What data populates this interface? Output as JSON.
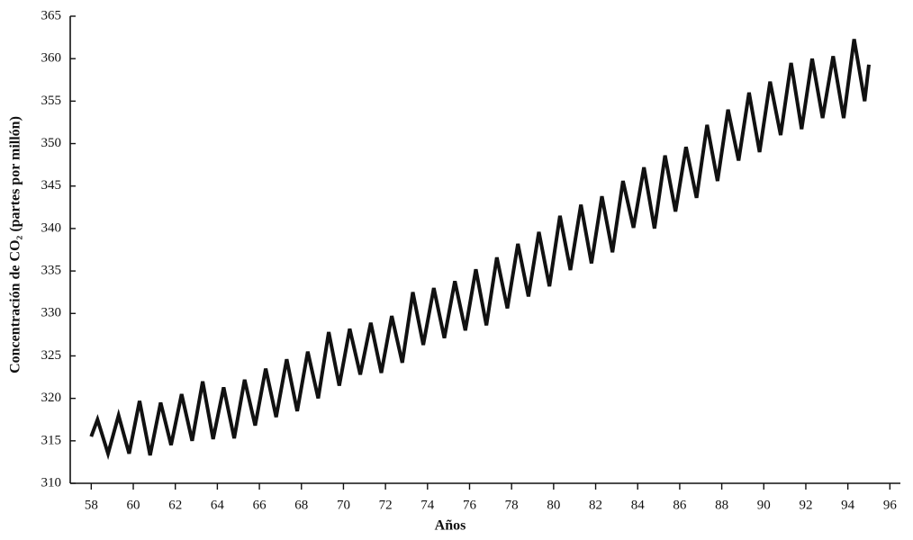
{
  "chart_data": {
    "type": "line",
    "xlabel": "Años",
    "ylabel": "Concentración de CO₂ (partes por millón)",
    "x": [
      58,
      58.3,
      58.8,
      59.3,
      59.8,
      60.3,
      60.8,
      61.3,
      61.8,
      62.3,
      62.8,
      63.3,
      63.8,
      64.3,
      64.8,
      65.3,
      65.8,
      66.3,
      66.8,
      67.3,
      67.8,
      68.3,
      68.8,
      69.3,
      69.8,
      70.3,
      70.8,
      71.3,
      71.8,
      72.3,
      72.8,
      73.3,
      73.8,
      74.3,
      74.8,
      75.3,
      75.8,
      76.3,
      76.8,
      77.3,
      77.8,
      78.3,
      78.8,
      79.3,
      79.8,
      80.3,
      80.8,
      81.3,
      81.8,
      82.3,
      82.8,
      83.3,
      83.8,
      84.3,
      84.8,
      85.3,
      85.8,
      86.3,
      86.8,
      87.3,
      87.8,
      88.3,
      88.8,
      89.3,
      89.8,
      90.3,
      90.8,
      91.3,
      91.8,
      92.3,
      92.8,
      93.3,
      93.8,
      94.3,
      94.8,
      95
    ],
    "values": [
      315.5,
      317.5,
      313.5,
      318,
      313.5,
      319.7,
      313.3,
      319.5,
      314.5,
      320.5,
      315,
      322,
      315.2,
      321.3,
      315.3,
      322.2,
      316.8,
      323.5,
      317.8,
      324.6,
      318.5,
      325.5,
      320,
      327.8,
      321.5,
      328.2,
      322.8,
      328.9,
      323,
      329.7,
      324.2,
      332.5,
      326.3,
      333,
      327.1,
      333.8,
      328,
      335.2,
      328.6,
      336.6,
      330.6,
      338.2,
      332,
      339.6,
      333.2,
      341.5,
      335.1,
      342.8,
      335.9,
      343.8,
      337.2,
      345.6,
      340.1,
      347.2,
      340,
      348.6,
      342,
      349.6,
      343.6,
      352.2,
      345.6,
      354,
      348,
      356,
      349,
      357.3,
      351,
      359.5,
      351.7,
      360,
      353,
      360.3,
      353,
      362.3,
      355,
      359.3
    ],
    "color": "#111111",
    "xlim": [
      57,
      96.5
    ],
    "xticks": [
      58,
      60,
      62,
      64,
      66,
      68,
      70,
      72,
      74,
      76,
      78,
      80,
      82,
      84,
      86,
      88,
      90,
      92,
      94,
      96
    ],
    "ylim": [
      310,
      365
    ],
    "yticks": [
      310,
      315,
      320,
      325,
      330,
      335,
      340,
      345,
      350,
      355,
      360,
      365
    ]
  }
}
